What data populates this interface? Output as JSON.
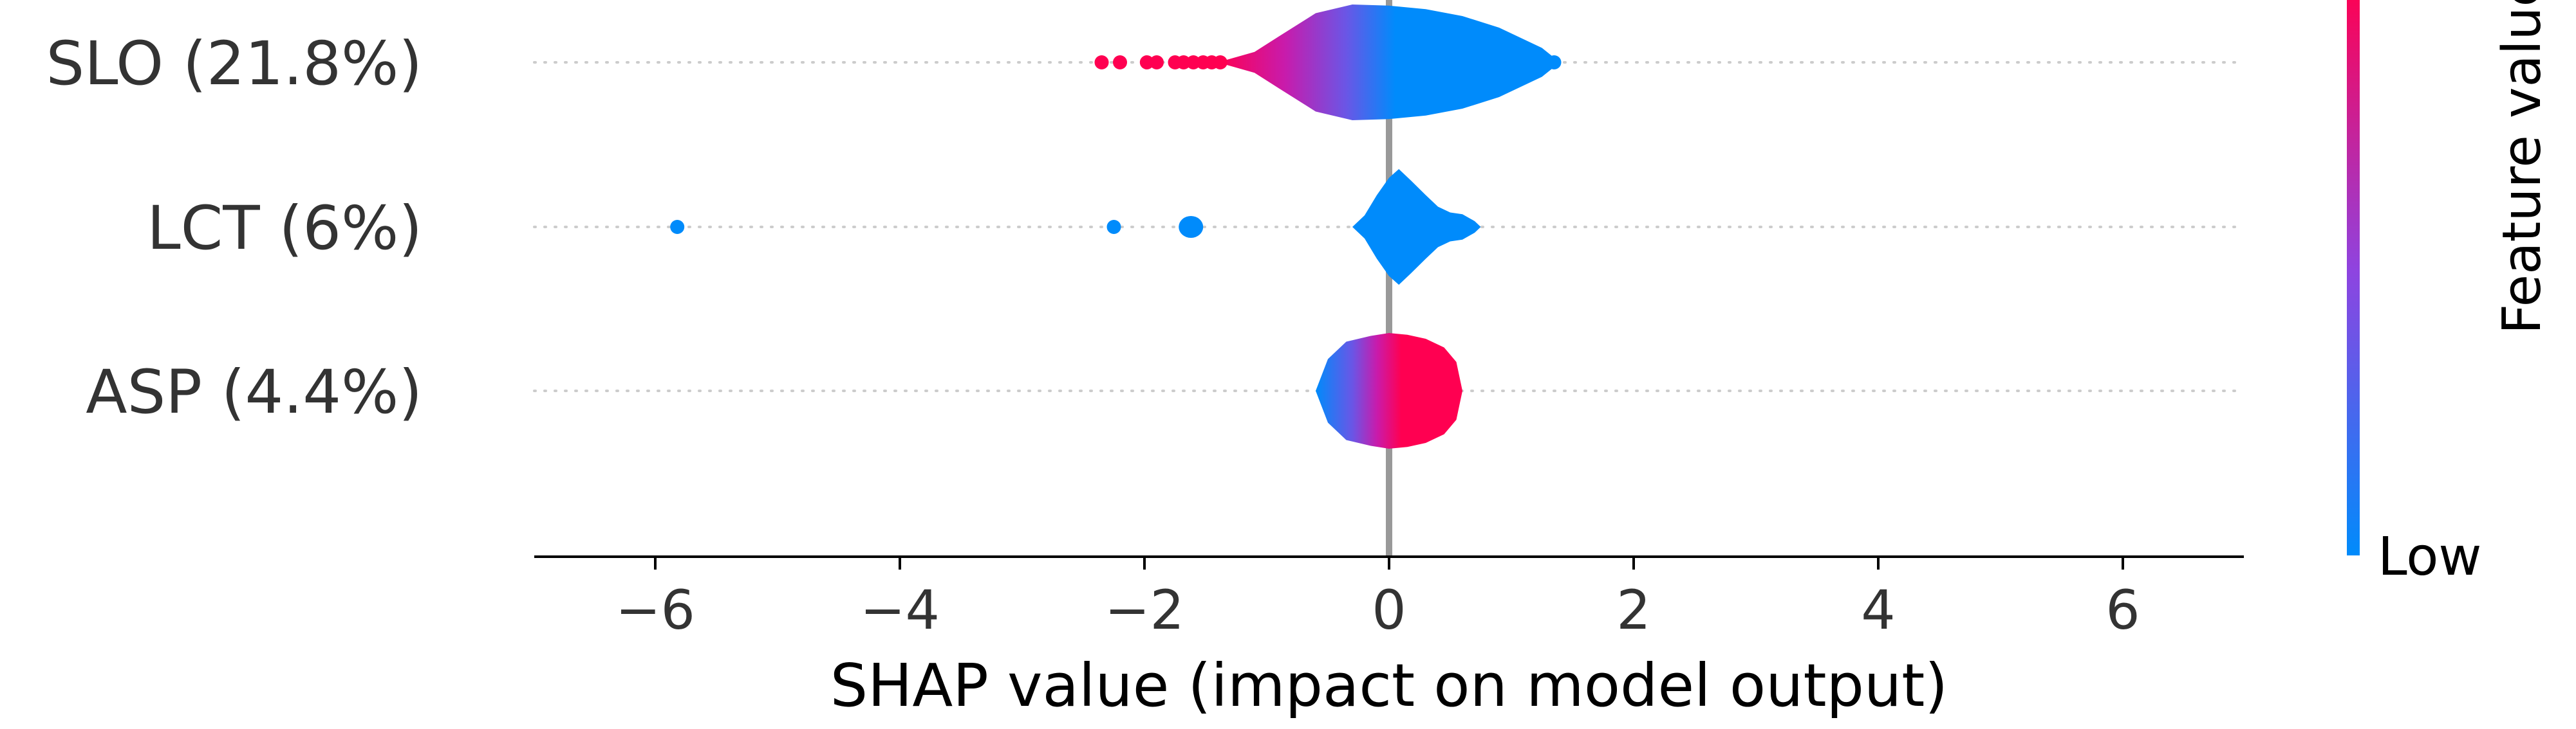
{
  "chart_data": {
    "type": "violin",
    "xlabel": "SHAP value (impact on model output)",
    "xlim": [
      -7,
      7
    ],
    "x_ticks": [
      {
        "value": -6,
        "label": "−6"
      },
      {
        "value": -4,
        "label": "−4"
      },
      {
        "value": -2,
        "label": "−2"
      },
      {
        "value": 0,
        "label": "0"
      },
      {
        "value": 2,
        "label": "2"
      },
      {
        "value": 4,
        "label": "4"
      },
      {
        "value": 6,
        "label": "6"
      }
    ],
    "features": [
      {
        "label": "SLO (21.8%)",
        "profile": [
          [
            -1.35,
            0.03
          ],
          [
            -1.1,
            0.18
          ],
          [
            -0.9,
            0.45
          ],
          [
            -0.6,
            0.85
          ],
          [
            -0.3,
            1.0
          ],
          [
            0.0,
            0.98
          ],
          [
            0.3,
            0.92
          ],
          [
            0.6,
            0.8
          ],
          [
            0.9,
            0.6
          ],
          [
            1.1,
            0.4
          ],
          [
            1.25,
            0.25
          ],
          [
            1.35,
            0.08
          ]
        ],
        "color_stops": [
          [
            -1.4,
            "#ff0051"
          ],
          [
            -0.85,
            "#c81bac"
          ],
          [
            -0.35,
            "#6a56e6"
          ],
          [
            0.05,
            "#008bfb"
          ],
          [
            1.4,
            "#008bfb"
          ]
        ],
        "outliers": [
          {
            "x": -2.35,
            "color": "#ff0051"
          },
          {
            "x": -2.2,
            "color": "#ff0051"
          },
          {
            "x": -1.98,
            "color": "#ff0051"
          },
          {
            "x": -1.9,
            "color": "#ff0051"
          },
          {
            "x": -1.75,
            "color": "#ff0051"
          },
          {
            "x": -1.68,
            "color": "#ff0051"
          },
          {
            "x": -1.6,
            "color": "#ff0051"
          },
          {
            "x": -1.52,
            "color": "#ff0051"
          },
          {
            "x": -1.45,
            "color": "#ff0051"
          },
          {
            "x": -1.38,
            "color": "#ff0051"
          },
          {
            "x": 1.35,
            "color": "#008bfb"
          }
        ]
      },
      {
        "label": "LCT (6%)",
        "profile": [
          [
            -0.3,
            0.0
          ],
          [
            -0.2,
            0.2
          ],
          [
            -0.1,
            0.55
          ],
          [
            0.0,
            0.85
          ],
          [
            0.08,
            1.0
          ],
          [
            0.18,
            0.8
          ],
          [
            0.3,
            0.55
          ],
          [
            0.4,
            0.35
          ],
          [
            0.5,
            0.25
          ],
          [
            0.6,
            0.22
          ],
          [
            0.7,
            0.1
          ],
          [
            0.75,
            0.0
          ]
        ],
        "color_stops": [
          [
            -0.3,
            "#008bfb"
          ],
          [
            0.75,
            "#008bfb"
          ]
        ],
        "secondary": {
          "center": -1.62,
          "half_width": 0.1,
          "color": "#008bfb"
        },
        "outliers": [
          {
            "x": -5.82,
            "color": "#008bfb"
          },
          {
            "x": -2.25,
            "color": "#008bfb"
          }
        ]
      },
      {
        "label": "ASP (4.4%)",
        "profile": [
          [
            -0.6,
            0.0
          ],
          [
            -0.5,
            0.55
          ],
          [
            -0.35,
            0.85
          ],
          [
            -0.15,
            0.95
          ],
          [
            0.0,
            1.0
          ],
          [
            0.15,
            0.97
          ],
          [
            0.3,
            0.9
          ],
          [
            0.45,
            0.75
          ],
          [
            0.55,
            0.5
          ],
          [
            0.6,
            0.0
          ]
        ],
        "color_stops": [
          [
            -0.6,
            "#008bfb"
          ],
          [
            -0.3,
            "#6a56e6"
          ],
          [
            -0.1,
            "#c81bac"
          ],
          [
            0.1,
            "#ff0051"
          ],
          [
            0.6,
            "#ff0051"
          ]
        ],
        "outliers": []
      }
    ],
    "colorbar": {
      "label": "Feature value",
      "low_label": "Low",
      "high_color": "#ff0051",
      "mid_color": "#8e44e0",
      "low_color": "#008bfb"
    },
    "grid": "dotted-rows",
    "zero_line_color": "#999999"
  }
}
